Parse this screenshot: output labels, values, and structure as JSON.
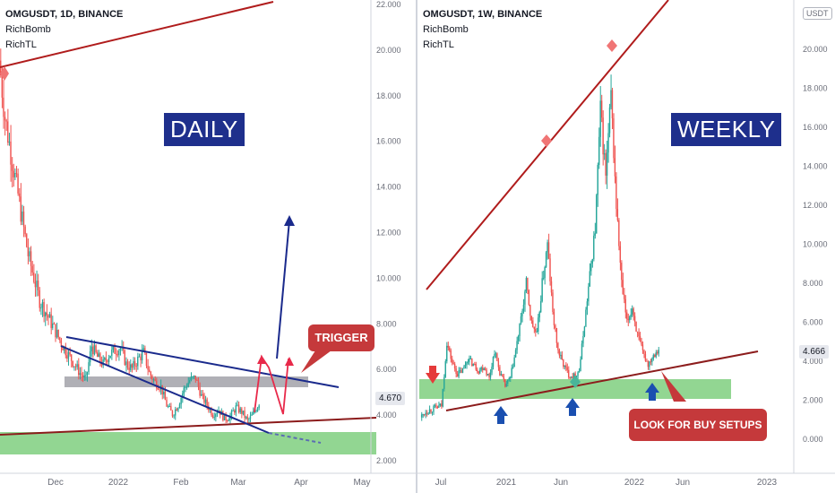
{
  "colors": {
    "bull": "#26a69a",
    "bear": "#ef5350",
    "trendline": "#b01c1c",
    "channel": "#1a2a8c",
    "support_zone": "#7fcf7f",
    "grey_zone": "#9c9ca4",
    "label_bg": "#1e2f8c",
    "callout_bg": "#c5393b",
    "signal_pink": "#e8294a"
  },
  "daily": {
    "symbol_line": "OMGUSDT, 1D, BINANCE",
    "indicator_1": "RichBomb",
    "indicator_2": "RichTL",
    "label": "DAILY",
    "callout": "TRIGGER",
    "last_price": "4.670",
    "y_ticks": [
      "22.000",
      "20.000",
      "18.000",
      "16.000",
      "14.000",
      "12.000",
      "10.000",
      "8.000",
      "6.000",
      "4.000",
      "2.000"
    ],
    "x_ticks": [
      "Dec",
      "2022",
      "Feb",
      "Mar",
      "Apr",
      "May"
    ]
  },
  "weekly": {
    "symbol_line": "OMGUSDT, 1W, BINANCE",
    "indicator_1": "RichBomb",
    "indicator_2": "RichTL",
    "label": "WEEKLY",
    "callout": "LOOK FOR BUY SETUPS",
    "currency_badge": "USDT",
    "last_price": "4.666",
    "y_ticks": [
      "20.000",
      "18.000",
      "16.000",
      "14.000",
      "12.000",
      "10.000",
      "8.000",
      "6.000",
      "4.000",
      "2.000",
      "0.000"
    ],
    "x_ticks": [
      "Jul",
      "2021",
      "Jun",
      "2022",
      "Jun",
      "2023"
    ]
  },
  "chart_data": [
    {
      "type": "candlestick",
      "title": "OMGUSDT, 1D, BINANCE",
      "ylim": [
        1.5,
        22.5
      ],
      "x_categories": [
        "Dec",
        "2022",
        "Feb",
        "Mar",
        "Apr",
        "May"
      ],
      "close_path": [
        19.5,
        17.0,
        15.5,
        14.0,
        12.5,
        11.0,
        10.0,
        9.0,
        8.5,
        8.0,
        7.5,
        7.0,
        6.6,
        6.2,
        5.8,
        5.5,
        7.0,
        6.5,
        6.2,
        6.6,
        6.8,
        6.9,
        6.2,
        6.0,
        6.4,
        6.7,
        5.8,
        5.4,
        5.2,
        4.4,
        4.0,
        4.4,
        5.1,
        5.5,
        5.6,
        4.8,
        4.4,
        4.0,
        4.2,
        3.8,
        3.9,
        4.3,
        4.1,
        3.7,
        4.0,
        4.5
      ],
      "annotations": [
        "DAILY",
        "TRIGGER"
      ]
    },
    {
      "type": "candlestick",
      "title": "OMGUSDT, 1W, BINANCE",
      "ylim": [
        -0.5,
        22.0
      ],
      "x_categories": [
        "Jul",
        "2021",
        "Jun",
        "2022",
        "Jun",
        "2023"
      ],
      "close_path": [
        1.2,
        1.5,
        1.6,
        1.7,
        1.8,
        5.0,
        4.0,
        3.4,
        3.6,
        4.2,
        3.9,
        3.6,
        3.8,
        3.2,
        4.6,
        3.5,
        2.8,
        3.2,
        4.6,
        6.2,
        8.0,
        6.0,
        5.4,
        8.0,
        10.0,
        6.5,
        4.6,
        3.9,
        3.4,
        3.3,
        3.6,
        6.0,
        8.4,
        10.8,
        16.8,
        13.5,
        17.5,
        12.0,
        8.0,
        6.0,
        6.8,
        5.4,
        4.5,
        3.9,
        4.4,
        4.7
      ],
      "annotations": [
        "WEEKLY",
        "LOOK FOR BUY SETUPS"
      ]
    }
  ]
}
